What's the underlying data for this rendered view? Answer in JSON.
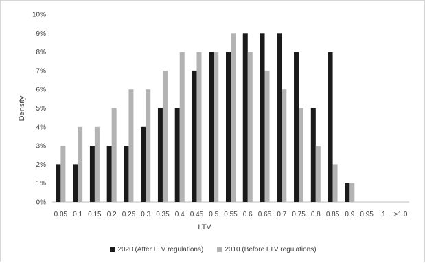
{
  "chart_data": {
    "type": "bar",
    "title": "",
    "xlabel": "LTV",
    "ylabel": "Density",
    "ylim": [
      0,
      10
    ],
    "y_ticks": [
      "0%",
      "1%",
      "2%",
      "3%",
      "4%",
      "5%",
      "6%",
      "7%",
      "8%",
      "9%",
      "10%"
    ],
    "categories": [
      "0.05",
      "0.1",
      "0.15",
      "0.2",
      "0.25",
      "0.3",
      "0.35",
      "0.4",
      "0.45",
      "0.5",
      "0.55",
      "0.6",
      "0.65",
      "0.7",
      "0.75",
      "0.8",
      "0.85",
      "0.9",
      "0.95",
      "1",
      ">1.0"
    ],
    "series": [
      {
        "name": "2020 (After LTV regulations)",
        "color": "#1a1a1a",
        "values": [
          2,
          2,
          3,
          3,
          3,
          4,
          5,
          5,
          7,
          8,
          8,
          9,
          9,
          9,
          8,
          5,
          8,
          1,
          0,
          0,
          0
        ]
      },
      {
        "name": "2010 (Before LTV regulations)",
        "color": "#b3b3b3",
        "values": [
          3,
          4,
          4,
          5,
          6,
          6,
          7,
          8,
          8,
          8,
          9,
          8,
          7,
          6,
          5,
          3,
          2,
          1,
          0,
          0,
          0
        ]
      }
    ],
    "grid": false,
    "legend_position": "bottom"
  }
}
